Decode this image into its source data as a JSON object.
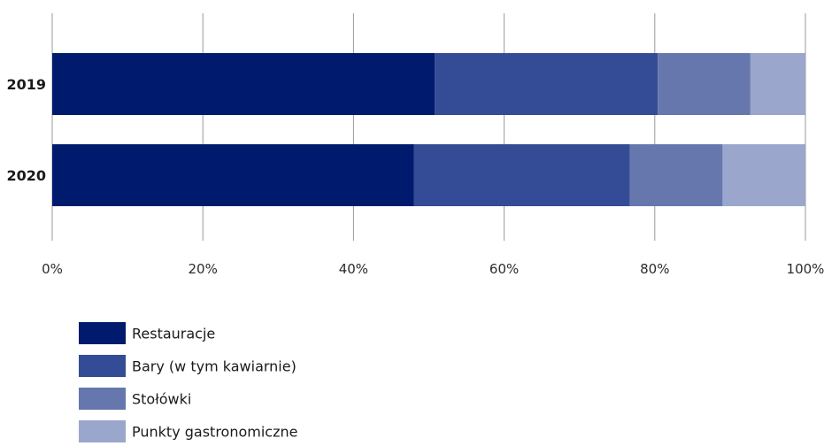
{
  "chart_data": {
    "type": "bar",
    "orientation": "horizontal",
    "stacked": true,
    "percent_stacked": true,
    "categories": [
      "2019",
      "2020"
    ],
    "series": [
      {
        "name": "Restauracje",
        "values": [
          50.8,
          48.0
        ],
        "color": "#001b6e"
      },
      {
        "name": "Bary (w tym kawiarnie)",
        "values": [
          29.6,
          28.7
        ],
        "color": "#344b95"
      },
      {
        "name": "Stołówki",
        "values": [
          12.3,
          12.3
        ],
        "color": "#6677ae"
      },
      {
        "name": "Punkty gastronomiczne",
        "values": [
          7.3,
          11.0
        ],
        "color": "#9aa6cb"
      }
    ],
    "xlim": [
      0,
      100
    ],
    "xticks": [
      "0%",
      "20%",
      "40%",
      "60%",
      "80%",
      "100%"
    ],
    "grid": true,
    "legend_position": "bottom-left"
  }
}
